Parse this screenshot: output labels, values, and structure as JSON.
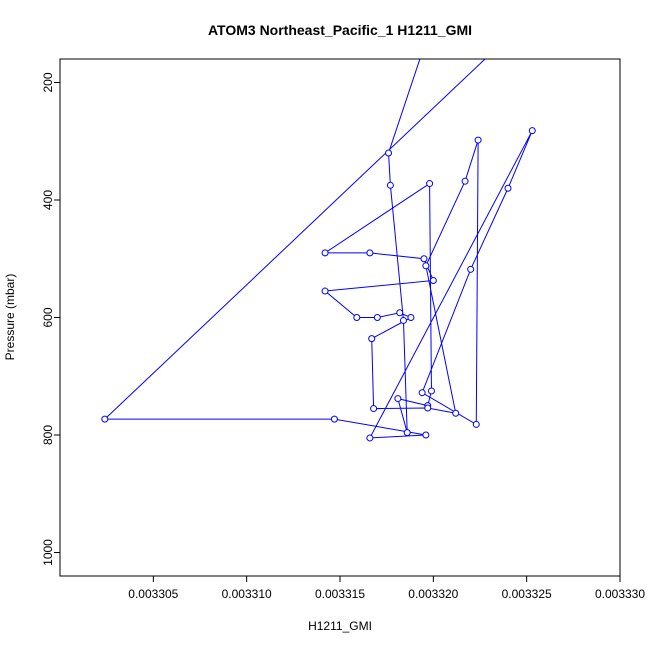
{
  "chart_data": {
    "type": "scatter",
    "title": "ATOM3 Northeast_Pacific_1 H1211_GMI",
    "xlabel": "H1211_GMI",
    "ylabel": "Pressure (mbar)",
    "xlim": [
      0.0033,
      0.00333
    ],
    "ylim": [
      1040,
      160
    ],
    "y_reversed": true,
    "grid": false,
    "x_ticks": [
      "0.003305",
      "0.003310",
      "0.003315",
      "0.003320",
      "0.003325",
      "0.003330"
    ],
    "x_tick_values": [
      0.003305,
      0.00331,
      0.003315,
      0.00332,
      0.003325,
      0.00333
    ],
    "y_ticks": [
      "200",
      "400",
      "600",
      "800",
      "1000"
    ],
    "y_tick_values": [
      200,
      400,
      600,
      800,
      1000
    ],
    "series": [
      {
        "marker": "open-circle",
        "color": "#0000ff",
        "line_extensions": {
          "start": [
            0.0033197,
            120
          ],
          "end": [
            0.0033241,
            120
          ]
        },
        "points": [
          [
            0.0033176,
            320
          ],
          [
            0.0033177,
            375
          ],
          [
            0.0033184,
            605
          ],
          [
            0.0033186,
            796
          ],
          [
            0.0033181,
            738
          ],
          [
            0.0033197,
            750
          ],
          [
            0.0033199,
            725
          ],
          [
            0.0033198,
            372
          ],
          [
            0.0033142,
            490
          ],
          [
            0.0033166,
            490
          ],
          [
            0.0033195,
            500
          ],
          [
            0.00332,
            537
          ],
          [
            0.0033142,
            555
          ],
          [
            0.0033159,
            600
          ],
          [
            0.003317,
            600
          ],
          [
            0.0033182,
            592
          ],
          [
            0.0033188,
            600
          ],
          [
            0.0033167,
            636
          ],
          [
            0.0033168,
            755
          ],
          [
            0.0033197,
            754
          ],
          [
            0.0033212,
            763
          ],
          [
            0.0033196,
            512
          ],
          [
            0.0033217,
            368
          ],
          [
            0.0033224,
            298
          ],
          [
            0.0033223,
            782
          ],
          [
            0.0033194,
            728
          ],
          [
            0.003322,
            518
          ],
          [
            0.003324,
            380
          ],
          [
            0.0033253,
            282
          ],
          [
            0.0033166,
            805
          ],
          [
            0.0033196,
            800
          ],
          [
            0.0033147,
            773
          ],
          [
            0.0033024,
            773
          ]
        ]
      }
    ]
  }
}
